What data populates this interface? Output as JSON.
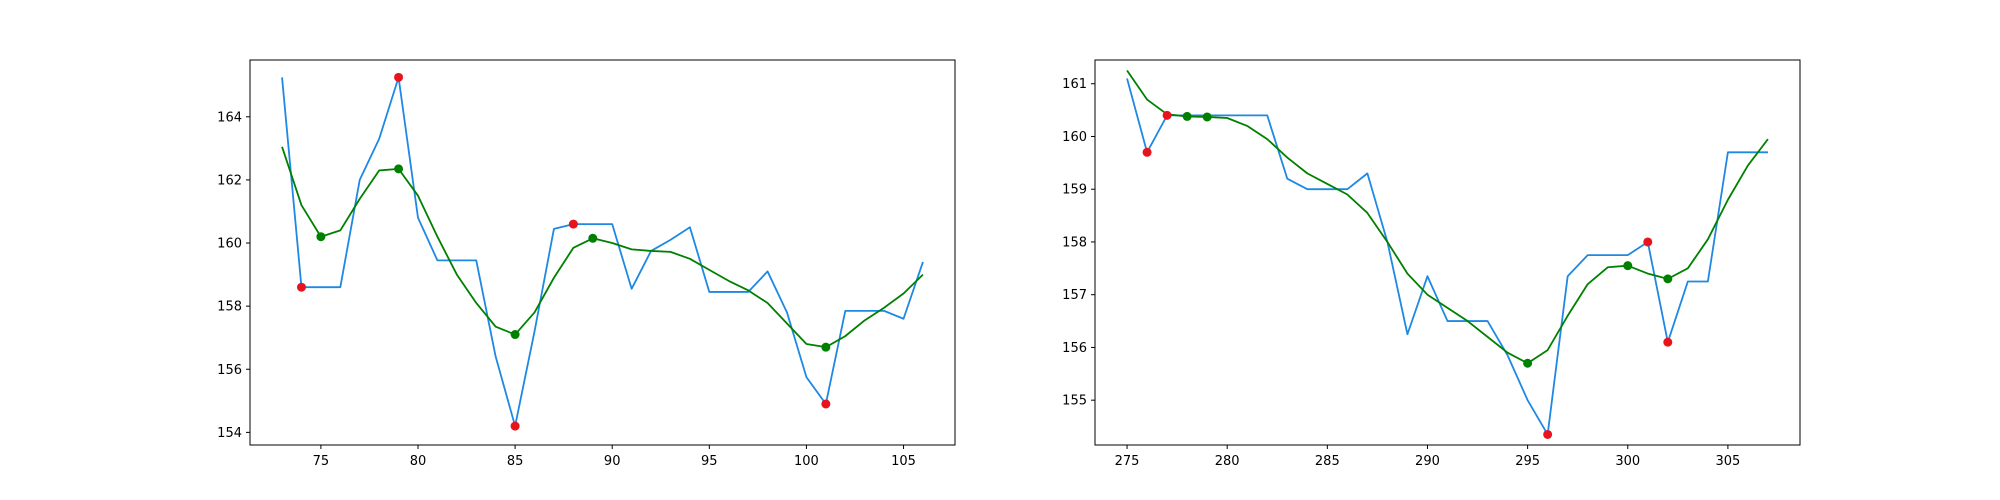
{
  "colors": {
    "raw_line": "#1e88e5",
    "smooth_line": "#008000",
    "extrema_points": "#e8141c",
    "smooth_extrema_points": "#008000",
    "background": "#ffffff",
    "axes": "#000000"
  },
  "chart_data": [
    {
      "type": "line",
      "title": "",
      "xlabel": "",
      "ylabel": "",
      "xlim": [
        71.35,
        107.65
      ],
      "ylim": [
        153.6,
        165.8
      ],
      "xticks": [
        75,
        80,
        85,
        90,
        95,
        100,
        105
      ],
      "yticks": [
        154,
        156,
        158,
        160,
        162,
        164
      ],
      "grid": false,
      "series": [
        {
          "role": "raw",
          "x": [
            73,
            74,
            75,
            76,
            77,
            78,
            79,
            80,
            81,
            82,
            83,
            84,
            85,
            86,
            87,
            88,
            89,
            90,
            91,
            92,
            93,
            94,
            95,
            96,
            97,
            98,
            99,
            100,
            101,
            102,
            103,
            104,
            105,
            106
          ],
          "y": [
            165.25,
            158.6,
            158.6,
            158.6,
            162.0,
            163.3,
            165.25,
            160.8,
            159.45,
            159.45,
            159.45,
            156.4,
            154.2,
            157.2,
            160.45,
            160.6,
            160.6,
            160.6,
            158.55,
            159.75,
            160.1,
            160.5,
            158.45,
            158.45,
            158.45,
            159.1,
            157.8,
            155.75,
            154.9,
            157.85,
            157.85,
            157.85,
            157.6,
            159.4
          ]
        },
        {
          "role": "smoothed",
          "x": [
            73,
            74,
            75,
            76,
            77,
            78,
            79,
            80,
            81,
            82,
            83,
            84,
            85,
            86,
            87,
            88,
            89,
            90,
            91,
            92,
            93,
            94,
            95,
            96,
            97,
            98,
            99,
            100,
            101,
            102,
            103,
            104,
            105,
            106
          ],
          "y": [
            163.05,
            161.2,
            160.2,
            160.4,
            161.4,
            162.3,
            162.35,
            161.5,
            160.2,
            159.0,
            158.1,
            157.35,
            157.1,
            157.8,
            158.9,
            159.85,
            160.15,
            160.0,
            159.8,
            159.75,
            159.72,
            159.5,
            159.15,
            158.8,
            158.5,
            158.1,
            157.45,
            156.8,
            156.7,
            157.05,
            157.55,
            157.95,
            158.4,
            159.0
          ]
        }
      ],
      "raw_extrema": {
        "x": [
          74,
          79,
          85,
          88,
          101
        ],
        "y": [
          158.6,
          165.25,
          154.2,
          160.6,
          154.9
        ]
      },
      "smoothed_extrema": {
        "x": [
          75,
          79,
          85,
          89,
          101
        ],
        "y": [
          160.2,
          162.35,
          157.1,
          160.15,
          156.7
        ]
      }
    },
    {
      "type": "line",
      "title": "",
      "xlabel": "",
      "ylabel": "",
      "xlim": [
        273.4,
        308.6
      ],
      "ylim": [
        154.15,
        161.45
      ],
      "xticks": [
        275,
        280,
        285,
        290,
        295,
        300,
        305
      ],
      "yticks": [
        155,
        156,
        157,
        158,
        159,
        160,
        161
      ],
      "grid": false,
      "series": [
        {
          "role": "raw",
          "x": [
            275,
            276,
            277,
            278,
            279,
            280,
            281,
            282,
            283,
            284,
            285,
            286,
            287,
            288,
            289,
            290,
            291,
            292,
            293,
            294,
            295,
            296,
            297,
            298,
            299,
            300,
            301,
            302,
            303,
            304,
            305,
            306,
            307
          ],
          "y": [
            161.1,
            159.7,
            160.4,
            160.4,
            160.4,
            160.4,
            160.4,
            160.4,
            159.2,
            159.0,
            159.0,
            159.0,
            159.3,
            158.0,
            156.25,
            157.35,
            156.5,
            156.5,
            156.5,
            155.85,
            155.0,
            154.35,
            157.35,
            157.75,
            157.75,
            157.75,
            158.0,
            156.1,
            157.25,
            157.25,
            159.7,
            159.7,
            159.7
          ]
        },
        {
          "role": "smoothed",
          "x": [
            275,
            276,
            277,
            278,
            279,
            280,
            281,
            282,
            283,
            284,
            285,
            286,
            287,
            288,
            289,
            290,
            291,
            292,
            293,
            294,
            295,
            296,
            297,
            298,
            299,
            300,
            301,
            302,
            303,
            304,
            305,
            306,
            307
          ],
          "y": [
            161.25,
            160.7,
            160.42,
            160.38,
            160.37,
            160.35,
            160.2,
            159.95,
            159.6,
            159.3,
            159.1,
            158.9,
            158.55,
            158.0,
            157.4,
            157.0,
            156.75,
            156.5,
            156.2,
            155.9,
            155.7,
            155.95,
            156.6,
            157.2,
            157.52,
            157.55,
            157.4,
            157.3,
            157.5,
            158.05,
            158.8,
            159.45,
            159.95
          ]
        }
      ],
      "raw_extrema": {
        "x": [
          276,
          277,
          296,
          301,
          302
        ],
        "y": [
          159.7,
          160.4,
          154.35,
          158.0,
          156.1
        ]
      },
      "smoothed_extrema": {
        "x": [
          278,
          279,
          295,
          300,
          302
        ],
        "y": [
          160.38,
          160.37,
          155.7,
          157.55,
          157.3
        ]
      }
    }
  ]
}
